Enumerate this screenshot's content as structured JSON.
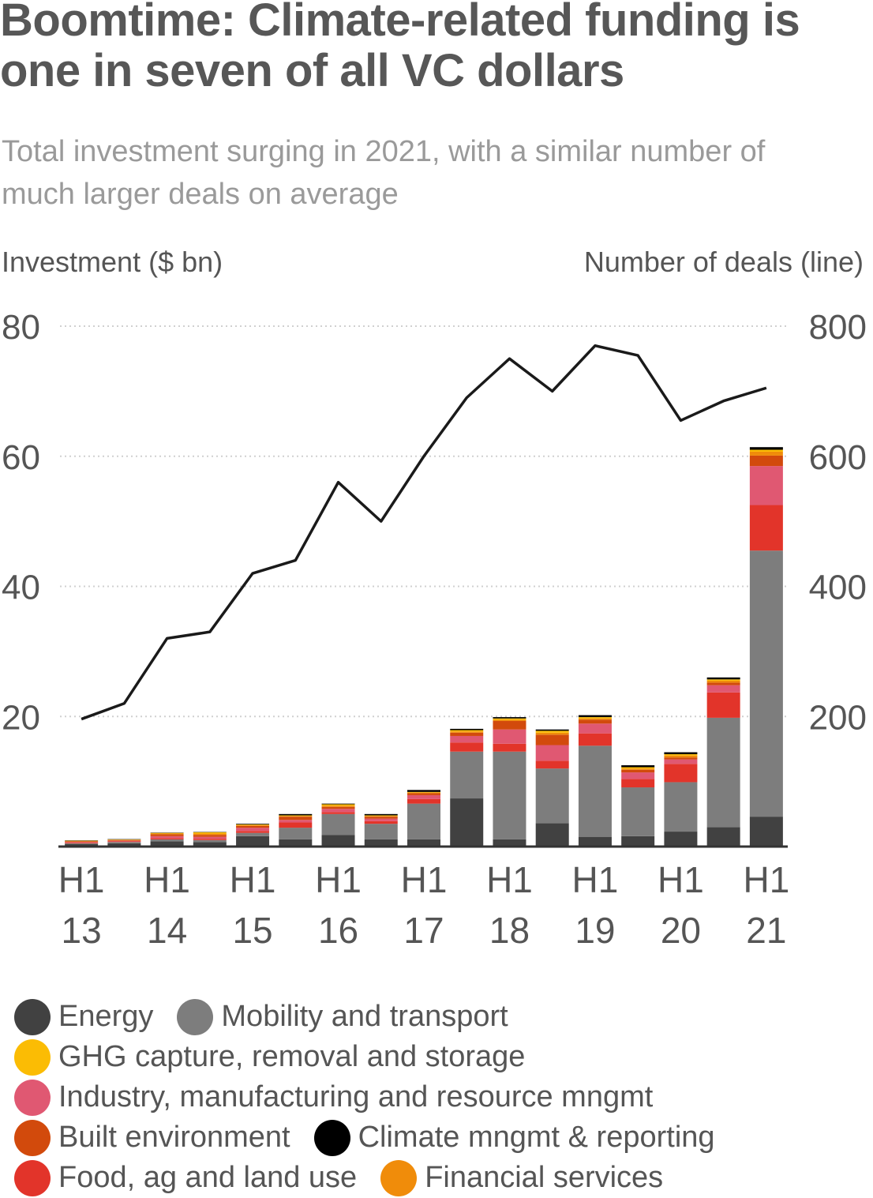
{
  "title": "Boomtime: Climate-related funding is one in seven of all VC dollars",
  "subtitle": "Total investment surging in 2021, with a similar number of much larger deals on average",
  "chart_data": {
    "type": "bar",
    "stacked": true,
    "secondary_line": true,
    "ylabel_left": "Investment ($ bn)",
    "ylabel_right": "Number of deals (line)",
    "ylim_left": [
      0,
      80
    ],
    "ylim_right": [
      0,
      800
    ],
    "yticks_left": [
      "80",
      "60",
      "40",
      "20"
    ],
    "yticks_right": [
      "800",
      "600",
      "400",
      "200"
    ],
    "yticks_values": [
      80,
      60,
      40,
      20
    ],
    "grid": "horizontal dotted",
    "x_tick_labels": [
      {
        "index": 0,
        "top": "H1",
        "bottom": "13"
      },
      {
        "index": 2,
        "top": "H1",
        "bottom": "14"
      },
      {
        "index": 4,
        "top": "H1",
        "bottom": "15"
      },
      {
        "index": 6,
        "top": "H1",
        "bottom": "16"
      },
      {
        "index": 8,
        "top": "H1",
        "bottom": "17"
      },
      {
        "index": 10,
        "top": "H1",
        "bottom": "18"
      },
      {
        "index": 12,
        "top": "H1",
        "bottom": "19"
      },
      {
        "index": 14,
        "top": "H1",
        "bottom": "20"
      },
      {
        "index": 16,
        "top": "H1",
        "bottom": "21"
      }
    ],
    "categories": [
      "H1 13",
      "H2 13",
      "H1 14",
      "H2 14",
      "H1 15",
      "H2 15",
      "H1 16",
      "H2 16",
      "H1 17",
      "H2 17",
      "H1 18",
      "H2 18",
      "H1 19",
      "H2 19",
      "H1 20",
      "H2 20",
      "H1 21"
    ],
    "series": [
      {
        "name": "Energy",
        "color": "#414141",
        "values": [
          0.4,
          0.5,
          0.8,
          0.7,
          1.6,
          1.1,
          1.8,
          1.1,
          1.1,
          7.4,
          1.1,
          3.6,
          1.5,
          1.6,
          2.3,
          3.0,
          4.6
        ]
      },
      {
        "name": "Mobility and transport",
        "color": "#7d7d7d",
        "values": [
          0.1,
          0.2,
          0.3,
          0.3,
          0.5,
          1.8,
          3.2,
          2.4,
          5.5,
          7.2,
          13.5,
          8.4,
          14.0,
          7.5,
          7.6,
          16.8,
          40.9
        ]
      },
      {
        "name": "Food, ag and land use",
        "color": "#e2342a",
        "values": [
          0.1,
          0.1,
          0.2,
          0.2,
          0.3,
          0.8,
          0.3,
          0.4,
          0.7,
          1.4,
          1.2,
          1.2,
          1.9,
          1.3,
          2.8,
          3.9,
          7.0
        ]
      },
      {
        "name": "Industry, manufacturing and resource mngmt",
        "color": "#e05872",
        "values": [
          0.1,
          0.1,
          0.3,
          0.3,
          0.5,
          0.4,
          0.5,
          0.4,
          0.6,
          1.0,
          2.2,
          2.4,
          1.5,
          1.0,
          0.7,
          1.1,
          6.0
        ]
      },
      {
        "name": "Built environment",
        "color": "#d24a0c",
        "values": [
          0.1,
          0.1,
          0.3,
          0.3,
          0.3,
          0.5,
          0.3,
          0.3,
          0.3,
          0.5,
          1.3,
          1.6,
          0.6,
          0.4,
          0.3,
          0.4,
          1.6
        ]
      },
      {
        "name": "Financial services",
        "color": "#f08c0a",
        "values": [
          0.05,
          0.05,
          0.1,
          0.2,
          0.1,
          0.1,
          0.2,
          0.1,
          0.1,
          0.2,
          0.2,
          0.3,
          0.2,
          0.2,
          0.3,
          0.3,
          0.6
        ]
      },
      {
        "name": "GHG capture, removal and storage",
        "color": "#fbbc04",
        "values": [
          0.05,
          0.05,
          0.1,
          0.2,
          0.1,
          0.1,
          0.2,
          0.1,
          0.1,
          0.2,
          0.2,
          0.3,
          0.2,
          0.2,
          0.2,
          0.2,
          0.3
        ]
      },
      {
        "name": "Climate mngmt & reporting",
        "color": "#000000",
        "values": [
          0.05,
          0.05,
          0.05,
          0.05,
          0.1,
          0.2,
          0.1,
          0.2,
          0.3,
          0.2,
          0.2,
          0.2,
          0.3,
          0.3,
          0.3,
          0.3,
          0.4
        ]
      }
    ],
    "line": {
      "name": "Number of deals",
      "values": [
        196,
        220,
        320,
        330,
        420,
        440,
        560,
        500,
        600,
        690,
        750,
        700,
        770,
        755,
        655,
        685,
        705
      ]
    }
  },
  "legend": {
    "rows": [
      [
        {
          "label": "Energy",
          "color": "#414141"
        },
        {
          "label": "Mobility and transport",
          "color": "#7d7d7d"
        }
      ],
      [
        {
          "label": "GHG capture, removal and storage",
          "color": "#fbbc04"
        }
      ],
      [
        {
          "label": "Industry, manufacturing and resource mngmt",
          "color": "#e05872"
        }
      ],
      [
        {
          "label": "Built environment",
          "color": "#d24a0c"
        },
        {
          "label": "Climate mngmt & reporting",
          "color": "#000000"
        }
      ],
      [
        {
          "label": "Food, ag and land use",
          "color": "#e2342a"
        },
        {
          "label": "Financial services",
          "color": "#f08c0a"
        }
      ]
    ]
  }
}
